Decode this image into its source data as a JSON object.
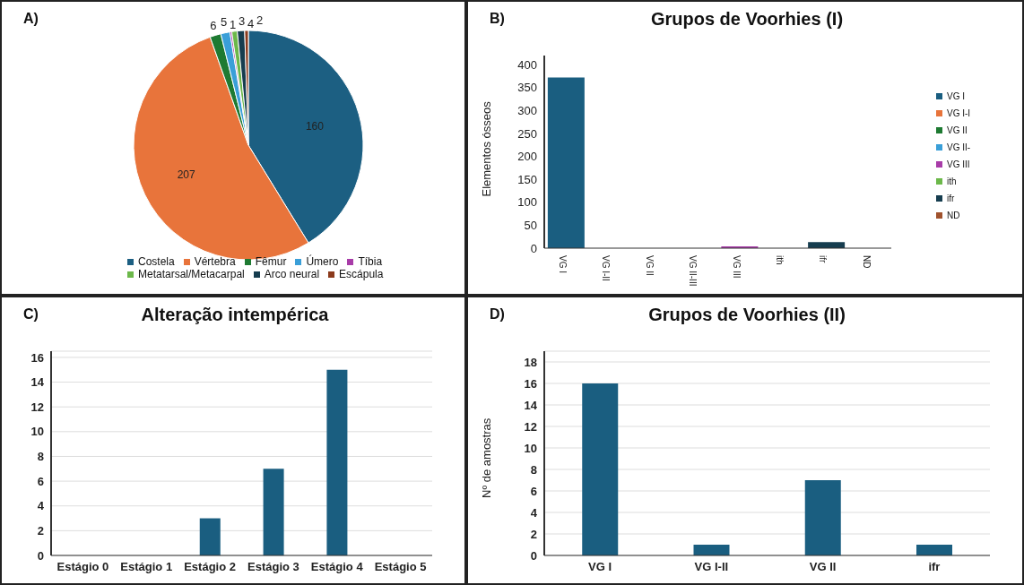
{
  "chart_data": [
    {
      "type": "pie",
      "annotations": [
        "A)"
      ],
      "categories": [
        "Costela",
        "Vértebra",
        "Fêmur",
        "Úmero",
        "Tíbia",
        "Metatarsal/Metacarpal",
        "Arco neural",
        "Escápula"
      ],
      "values": [
        160,
        207,
        6,
        5,
        1,
        3,
        4,
        2
      ],
      "colors": [
        "#1c5f82",
        "#e8743b",
        "#1e7a32",
        "#3a9fd8",
        "#a83ca8",
        "#6cb84a",
        "#163d4f",
        "#8b3a1c"
      ],
      "data_labels": true,
      "legend": "bottom"
    },
    {
      "type": "bar",
      "title": "Grupos de Voorhies (I)",
      "annotations": [
        "B)"
      ],
      "ylabel": "Elementos ósseos",
      "categories": [
        "VG I",
        "VG I-II",
        "VG II",
        "VG II-III",
        "VG III",
        "ith",
        "ifr",
        "ND"
      ],
      "stacked": true,
      "series": [
        {
          "name": "VG I",
          "color": "#1a5e80",
          "values": [
            372,
            null,
            null,
            null,
            null,
            null,
            null,
            null
          ]
        },
        {
          "name": "VG I-I",
          "color": "#e8743b",
          "values": [
            null,
            0,
            null,
            null,
            null,
            null,
            null,
            null
          ]
        },
        {
          "name": "VG II",
          "color": "#1e7a32",
          "values": [
            null,
            null,
            0,
            null,
            null,
            null,
            null,
            null
          ]
        },
        {
          "name": "VG II-",
          "color": "#3a9fd8",
          "values": [
            null,
            null,
            null,
            0,
            null,
            null,
            null,
            null
          ]
        },
        {
          "name": "VG III",
          "color": "#a83ca8",
          "values": [
            null,
            null,
            null,
            null,
            4,
            null,
            null,
            null
          ]
        },
        {
          "name": "ith",
          "color": "#6cb84a",
          "values": [
            null,
            null,
            null,
            null,
            null,
            0,
            null,
            null
          ]
        },
        {
          "name": "ifr",
          "color": "#163d4f",
          "values": [
            null,
            null,
            null,
            null,
            null,
            null,
            13,
            null
          ]
        },
        {
          "name": "ND",
          "color": "#a0522d",
          "values": [
            null,
            null,
            null,
            null,
            null,
            null,
            null,
            0
          ]
        }
      ],
      "ylim": [
        0,
        420
      ],
      "yticks": [
        0,
        50,
        100,
        150,
        200,
        250,
        300,
        350,
        400
      ],
      "legend": "right"
    },
    {
      "type": "bar",
      "title": "Alteração intempérica",
      "annotations": [
        "C)"
      ],
      "categories": [
        "Estágio 0",
        "Estágio 1",
        "Estágio 2",
        "Estágio 3",
        "Estágio 4",
        "Estágio 5"
      ],
      "values": [
        0,
        0,
        3,
        7,
        15,
        0
      ],
      "color": "#1a5e80",
      "ylim": [
        0,
        16.5
      ],
      "yticks": [
        0,
        2,
        4,
        6,
        8,
        10,
        12,
        14,
        16
      ],
      "grid": "y"
    },
    {
      "type": "bar",
      "title": "Grupos de Voorhies (II)",
      "annotations": [
        "D)"
      ],
      "ylabel": "Nº de amostras",
      "categories": [
        "VG I",
        "VG I-II",
        "VG II",
        "ifr"
      ],
      "values": [
        16,
        1,
        7,
        1
      ],
      "color": "#1a5e80",
      "ylim": [
        0,
        19
      ],
      "yticks": [
        0,
        2,
        4,
        6,
        8,
        10,
        12,
        14,
        16,
        18
      ],
      "grid": "y"
    }
  ]
}
